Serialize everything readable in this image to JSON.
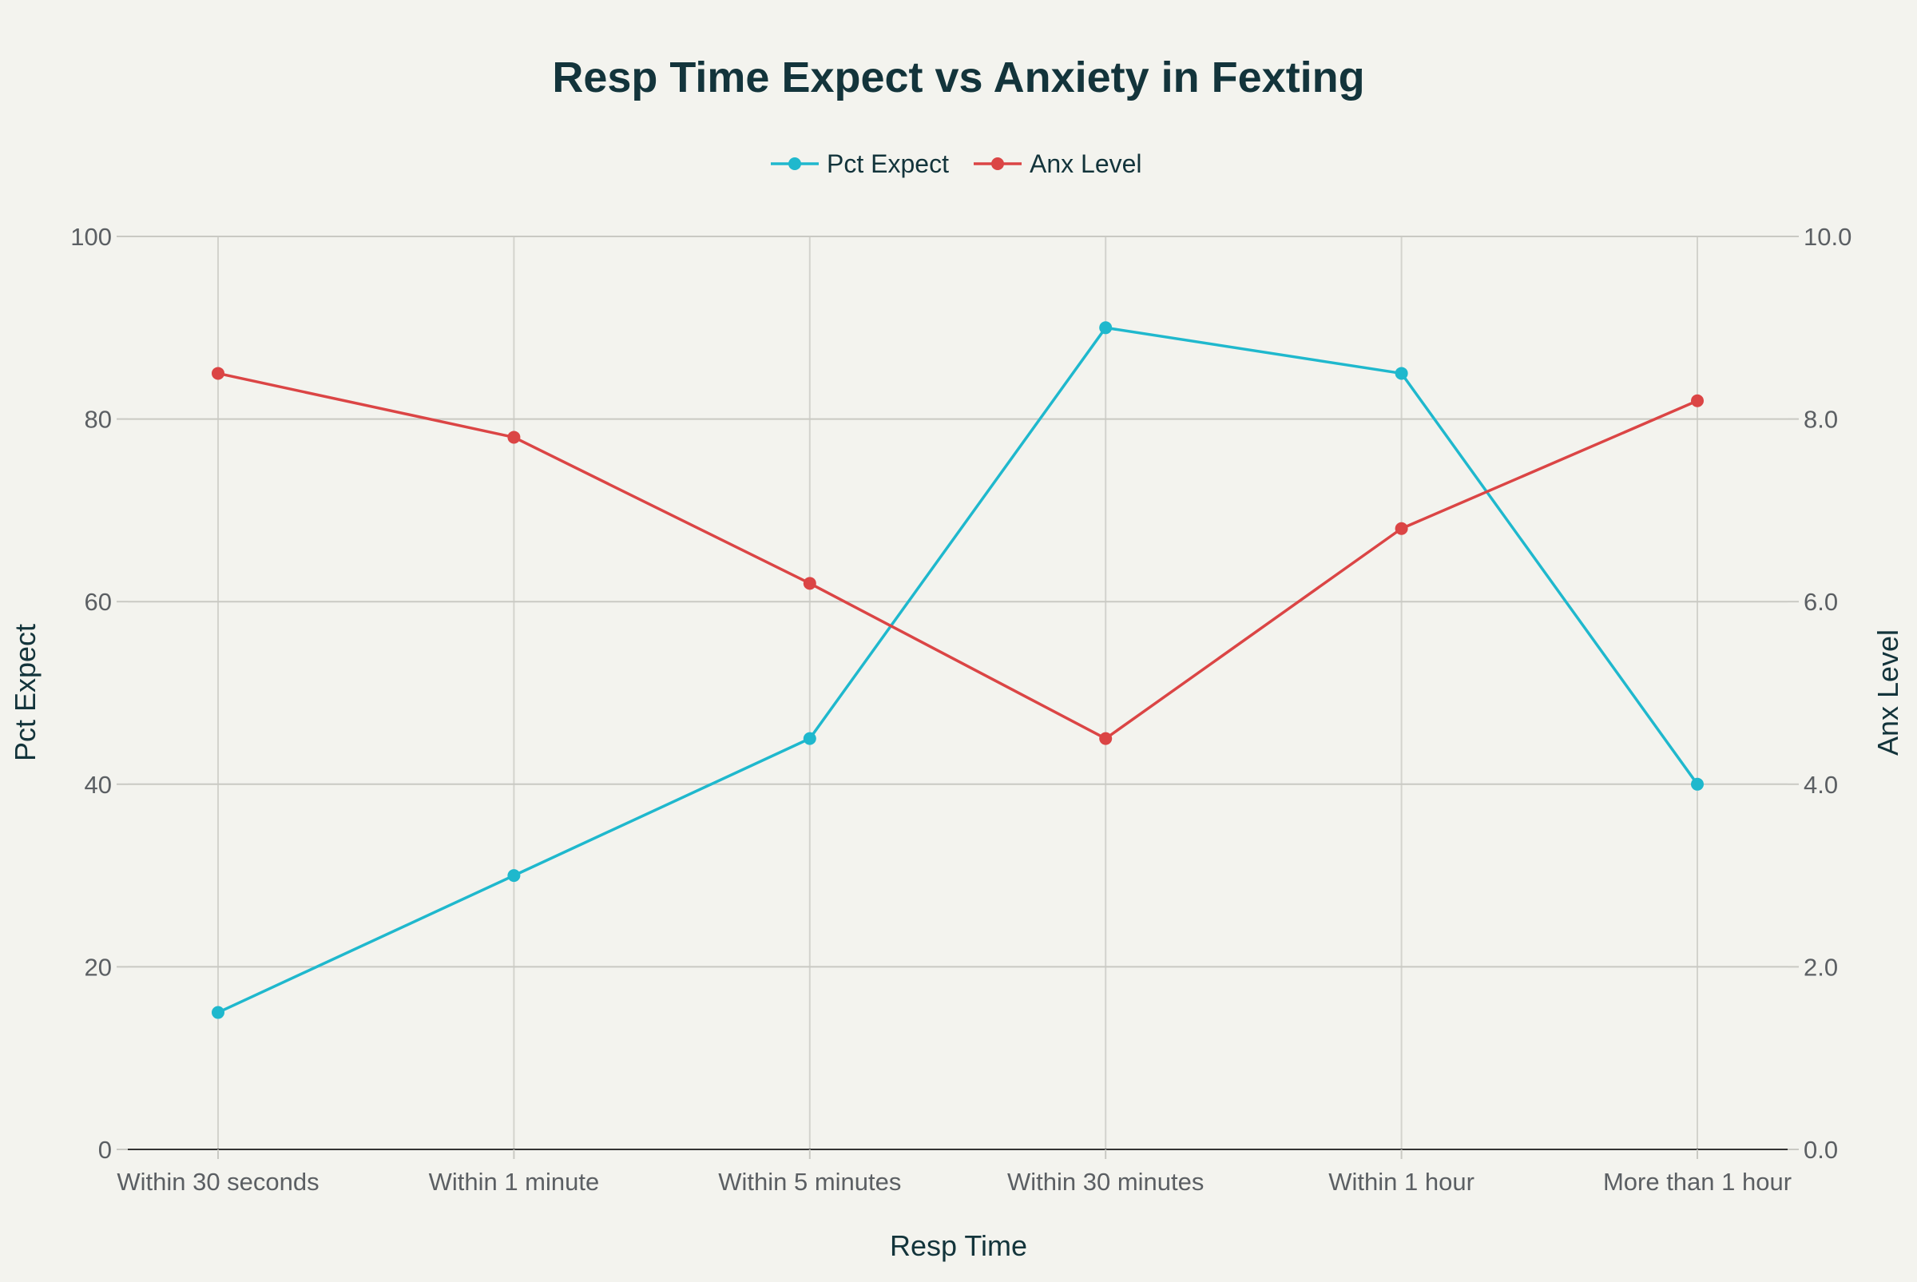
{
  "chart_data": {
    "type": "line",
    "title": "Resp Time Expect vs Anxiety in Fexting",
    "xlabel": "Resp Time",
    "ylabel": "Pct Expect",
    "y2label": "Anx Level",
    "categories": [
      "Within 30 seconds",
      "Within 1 minute",
      "Within 5 minutes",
      "Within 30 minutes",
      "Within 1 hour",
      "More than 1 hour"
    ],
    "ylim": [
      0,
      100
    ],
    "y2lim": [
      0,
      10
    ],
    "yticks": [
      0,
      20,
      40,
      60,
      80,
      100
    ],
    "y2ticks": [
      "0.0",
      "2.0",
      "4.0",
      "6.0",
      "8.0",
      "10.0"
    ],
    "grid": true,
    "legend_position": "top-center",
    "series": [
      {
        "name": "Pct Expect",
        "axis": "left",
        "color": "#1fb8cd",
        "values": [
          15,
          30,
          45,
          90,
          85,
          40
        ]
      },
      {
        "name": "Anx Level",
        "axis": "right",
        "color": "#db4545",
        "values": [
          8.5,
          7.8,
          6.2,
          4.5,
          6.8,
          8.2
        ]
      }
    ]
  }
}
